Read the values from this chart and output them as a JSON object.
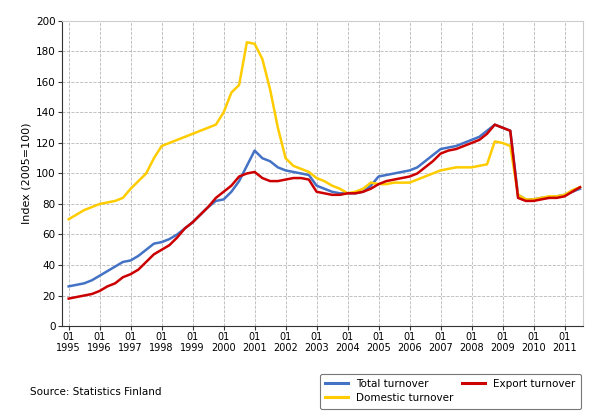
{
  "title": "",
  "ylabel": "Index (2005=100)",
  "source": "Source: Statistics Finland",
  "ylim": [
    0,
    200
  ],
  "yticks": [
    0,
    20,
    40,
    60,
    80,
    100,
    120,
    140,
    160,
    180,
    200
  ],
  "bg_color": "#ffffff",
  "grid_color": "#999999",
  "total_color": "#4472c4",
  "export_color": "#cc0000",
  "domestic_color": "#ffcc00",
  "line_width": 1.8,
  "legend_labels": [
    "Total turnover",
    "Domestic turnover",
    "Export turnover"
  ],
  "total_turnover": [
    26,
    27,
    28,
    30,
    33,
    36,
    39,
    42,
    43,
    46,
    50,
    54,
    55,
    57,
    60,
    64,
    68,
    73,
    78,
    82,
    83,
    88,
    95,
    105,
    115,
    110,
    108,
    104,
    102,
    101,
    100,
    99,
    92,
    90,
    88,
    87,
    87,
    87,
    88,
    92,
    98,
    99,
    100,
    101,
    102,
    104,
    108,
    112,
    116,
    117,
    118,
    120,
    122,
    124,
    128,
    132,
    130,
    128,
    86,
    83,
    83,
    84,
    84,
    85,
    86,
    88,
    90
  ],
  "export_turnover": [
    18,
    19,
    20,
    21,
    23,
    26,
    28,
    32,
    34,
    37,
    42,
    47,
    50,
    53,
    58,
    64,
    68,
    73,
    78,
    84,
    88,
    92,
    98,
    100,
    101,
    97,
    95,
    95,
    96,
    97,
    97,
    96,
    88,
    87,
    86,
    86,
    87,
    87,
    88,
    90,
    93,
    95,
    96,
    97,
    98,
    100,
    104,
    108,
    113,
    115,
    116,
    118,
    120,
    122,
    126,
    132,
    130,
    128,
    84,
    82,
    82,
    83,
    84,
    84,
    85,
    88,
    91
  ],
  "domestic_turnover": [
    70,
    73,
    76,
    78,
    80,
    81,
    82,
    84,
    90,
    95,
    100,
    110,
    118,
    120,
    122,
    124,
    126,
    128,
    130,
    132,
    140,
    153,
    158,
    186,
    185,
    175,
    155,
    130,
    110,
    105,
    103,
    101,
    97,
    95,
    92,
    90,
    87,
    88,
    90,
    94,
    93,
    93,
    94,
    94,
    94,
    96,
    98,
    100,
    102,
    103,
    104,
    104,
    104,
    105,
    106,
    121,
    120,
    118,
    86,
    83,
    83,
    84,
    85,
    85,
    86,
    89,
    91
  ]
}
